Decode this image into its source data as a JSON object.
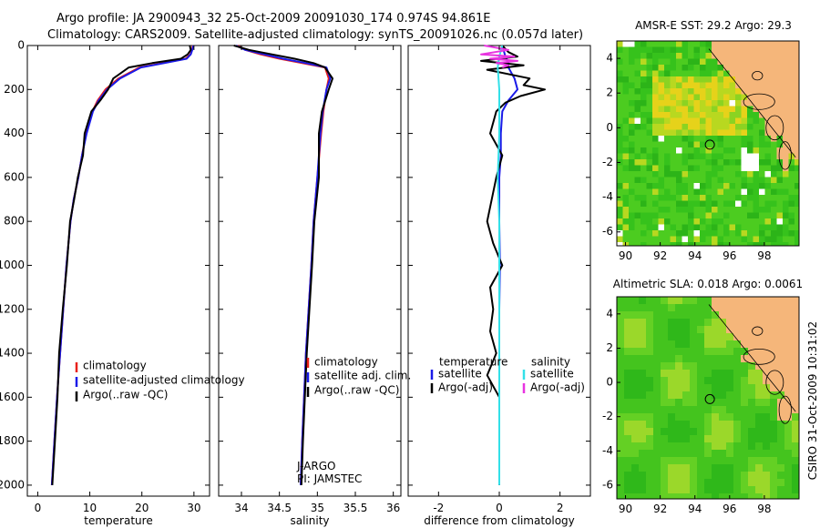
{
  "header": {
    "title_line1": "Argo profile: JA 2900943_32 25-Oct-2009 20091030_174 0.974S 94.861E",
    "title_line2": "Climatology: CARS2009. Satellite-adjusted climatology: synTS_20091026.nc (0.057d later)"
  },
  "side_stamp": "CSIRO 31-Oct-2009 10:31:02",
  "colors": {
    "climatology": "#e8201a",
    "satellite": "#1a1ae8",
    "argo": "#000000",
    "satellite_salinity": "#33e0e8",
    "argo_salinity_adj": "#e833e0",
    "land": "#f5b67a"
  },
  "chart_data": [
    {
      "type": "line",
      "id": "temperature",
      "xlabel": "temperature",
      "ylabel": "",
      "xlim": [
        -2,
        33
      ],
      "ylim": [
        2050,
        0
      ],
      "xticks": [
        0,
        10,
        20,
        30
      ],
      "yticks": [
        0,
        200,
        400,
        600,
        800,
        1000,
        1200,
        1400,
        1600,
        1800,
        2000
      ],
      "legend": [
        "climatology",
        "satellite-adjusted climatology",
        "Argo(..raw -QC)"
      ],
      "series": [
        {
          "name": "climatology",
          "color": "#e8201a",
          "y": [
            0,
            20,
            40,
            60,
            80,
            100,
            150,
            200,
            250,
            300,
            400,
            500,
            600,
            700,
            800,
            1000,
            1200,
            1400,
            1600,
            1800,
            2000
          ],
          "x": [
            29.8,
            29.6,
            29.3,
            28.4,
            24,
            19.5,
            15.5,
            13,
            11.5,
            10.5,
            9.3,
            8.5,
            7.8,
            6.9,
            6.3,
            5.5,
            4.9,
            4.3,
            3.7,
            3.2,
            2.7
          ]
        },
        {
          "name": "satellite-adjusted climatology",
          "color": "#1a1ae8",
          "y": [
            0,
            20,
            40,
            60,
            80,
            100,
            150,
            200,
            250,
            300,
            400,
            500,
            600,
            700,
            800,
            1000,
            1200,
            1400,
            1600,
            1800,
            2000
          ],
          "x": [
            29.9,
            29.7,
            29.4,
            28.6,
            24.3,
            19.8,
            15.8,
            13.3,
            11.7,
            10.6,
            9.4,
            8.5,
            7.8,
            6.9,
            6.3,
            5.5,
            4.9,
            4.3,
            3.7,
            3.2,
            2.7
          ]
        },
        {
          "name": "Argo(..raw -QC)",
          "color": "#000000",
          "y": [
            0,
            20,
            40,
            60,
            80,
            100,
            150,
            200,
            250,
            300,
            400,
            500,
            600,
            700,
            800,
            1000,
            1200,
            1400,
            1600,
            1800,
            2000
          ],
          "x": [
            29.2,
            29.4,
            28.8,
            27.5,
            22,
            17.5,
            14.5,
            13.5,
            12,
            10.3,
            9.0,
            8.7,
            7.7,
            7.0,
            6.2,
            5.6,
            4.8,
            4.1,
            3.8,
            3.3,
            2.8
          ]
        }
      ]
    },
    {
      "type": "line",
      "id": "salinity",
      "xlabel": "salinity",
      "ylabel": "",
      "xlim": [
        33.7,
        36.1
      ],
      "ylim": [
        2050,
        0
      ],
      "xticks": [
        34,
        34.5,
        35,
        35.5,
        36
      ],
      "legend": [
        "climatology",
        "satellite adj. clim.",
        "Argo(..raw -QC)"
      ],
      "annotation": [
        "J-ARGO",
        "PI: JAMSTEC"
      ],
      "series": [
        {
          "name": "climatology",
          "color": "#e8201a",
          "y": [
            0,
            20,
            40,
            60,
            80,
            100,
            150,
            200,
            300,
            400,
            600,
            800,
            1000,
            1400,
            1800,
            2000
          ],
          "x": [
            33.95,
            34.05,
            34.25,
            34.5,
            34.8,
            35.1,
            35.15,
            35.12,
            35.08,
            35.05,
            35.0,
            34.95,
            34.92,
            34.85,
            34.8,
            34.78
          ]
        },
        {
          "name": "satellite adj. clim.",
          "color": "#1a1ae8",
          "y": [
            0,
            20,
            40,
            60,
            80,
            100,
            150,
            200,
            300,
            400,
            600,
            800,
            1000,
            1400,
            1800,
            2000
          ],
          "x": [
            33.93,
            34.05,
            34.3,
            34.55,
            34.85,
            35.12,
            35.17,
            35.12,
            35.07,
            35.04,
            35.0,
            34.95,
            34.92,
            34.85,
            34.8,
            34.78
          ]
        },
        {
          "name": "Argo(..raw -QC)",
          "color": "#000000",
          "y": [
            0,
            20,
            40,
            60,
            80,
            100,
            150,
            200,
            300,
            400,
            600,
            800,
            1000,
            1400,
            1800,
            2000
          ],
          "x": [
            33.9,
            34.1,
            34.4,
            34.7,
            34.95,
            35.1,
            35.2,
            35.15,
            35.06,
            35.02,
            35.02,
            34.96,
            34.93,
            34.86,
            34.81,
            34.79
          ]
        }
      ]
    },
    {
      "type": "line",
      "id": "difference",
      "xlabel": "difference from climatology",
      "ylabel": "",
      "xlim": [
        -3,
        3
      ],
      "ylim": [
        2050,
        0
      ],
      "xticks": [
        -2,
        0,
        2
      ],
      "legend_groups": [
        {
          "title": "temperature",
          "items": [
            "satellite",
            "Argo(-adj)"
          ]
        },
        {
          "title": "salinity",
          "items": [
            "satellite",
            "Argo(-adj)"
          ]
        }
      ],
      "series": [
        {
          "name": "temperature satellite",
          "color": "#1a1ae8",
          "y": [
            0,
            50,
            80,
            100,
            150,
            200,
            250,
            300,
            400,
            500,
            600,
            800,
            1000,
            1200,
            1400,
            1600,
            1800,
            2000
          ],
          "x": [
            0.1,
            0.2,
            0.3,
            0.3,
            0.5,
            0.6,
            0.3,
            0.1,
            0.05,
            0.05,
            0.0,
            0.0,
            0.02,
            0.0,
            0.0,
            0.0,
            0.0,
            0.0
          ]
        },
        {
          "name": "temperature Argo(-adj)",
          "color": "#000000",
          "y": [
            0,
            30,
            50,
            70,
            90,
            110,
            150,
            180,
            200,
            230,
            260,
            300,
            400,
            500,
            600,
            800,
            900,
            1000,
            1100,
            1200,
            1300,
            1400,
            1500,
            1600,
            1800,
            2000
          ],
          "x": [
            0.1,
            0.3,
            0.6,
            -0.6,
            0.8,
            -0.4,
            1.0,
            0.8,
            1.5,
            0.7,
            0.2,
            -0.1,
            -0.3,
            0.1,
            -0.1,
            -0.4,
            -0.2,
            0.1,
            -0.3,
            -0.2,
            -0.3,
            -0.1,
            -0.4,
            0.0,
            0.0,
            0.0
          ]
        },
        {
          "name": "salinity satellite",
          "color": "#33e0e8",
          "y": [
            0,
            50,
            100,
            200,
            400,
            600,
            800,
            1000,
            1400,
            1800,
            2000
          ],
          "x": [
            0.1,
            0.0,
            -0.05,
            0.0,
            0.0,
            -0.05,
            0.0,
            0.0,
            0.0,
            0.0,
            0.0
          ]
        },
        {
          "name": "salinity Argo(-adj)",
          "color": "#e833e0",
          "y": [
            0,
            20,
            40,
            50,
            60,
            70,
            80,
            90,
            100
          ],
          "x": [
            -0.5,
            0.3,
            -0.6,
            0.5,
            -0.3,
            0.6,
            -0.1,
            0.3,
            0.1
          ]
        }
      ]
    },
    {
      "type": "heatmap",
      "id": "sst_map",
      "title": "AMSR-E SST: 29.2  Argo: 29.3",
      "xticks": [
        90,
        92,
        94,
        96,
        98
      ],
      "yticks": [
        4,
        2,
        0,
        -2,
        -4,
        -6
      ],
      "xlim": [
        89.5,
        100
      ],
      "ylim": [
        -6.8,
        5
      ],
      "marker": {
        "lon": 94.861,
        "lat": -0.974
      }
    },
    {
      "type": "heatmap",
      "id": "sla_map",
      "title": "Altimetric SLA: 0.018  Argo: 0.0061",
      "xticks": [
        90,
        92,
        94,
        96,
        98
      ],
      "yticks": [
        4,
        2,
        0,
        -2,
        -4,
        -6
      ],
      "xlim": [
        89.5,
        100
      ],
      "ylim": [
        -6.8,
        5
      ],
      "marker": {
        "lon": 94.861,
        "lat": -0.974
      }
    }
  ]
}
